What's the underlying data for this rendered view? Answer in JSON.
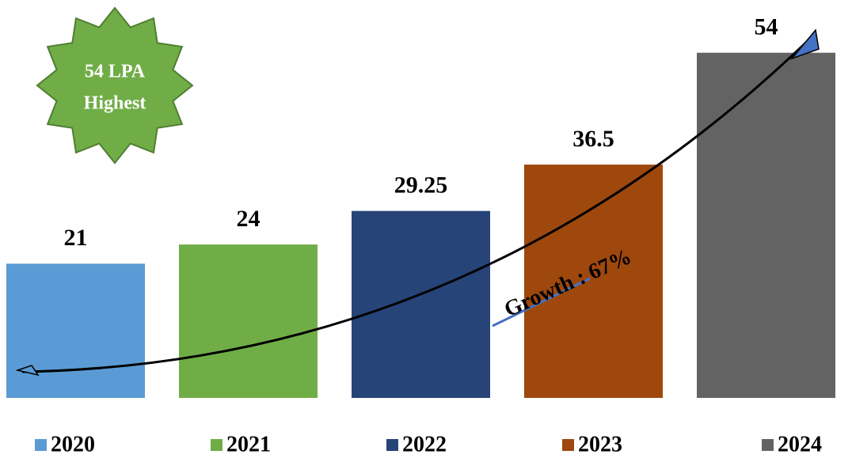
{
  "chart_data": {
    "type": "bar",
    "categories": [
      "2020",
      "2021",
      "2022",
      "2023",
      "2024"
    ],
    "values": [
      21,
      24,
      29.25,
      36.5,
      54
    ],
    "colors": [
      "#5b9bd5",
      "#70ad47",
      "#264478",
      "#9e480e",
      "#636363"
    ],
    "badge": [
      "54 LPA",
      "Highest"
    ],
    "annotation": "Growth : 67%"
  }
}
